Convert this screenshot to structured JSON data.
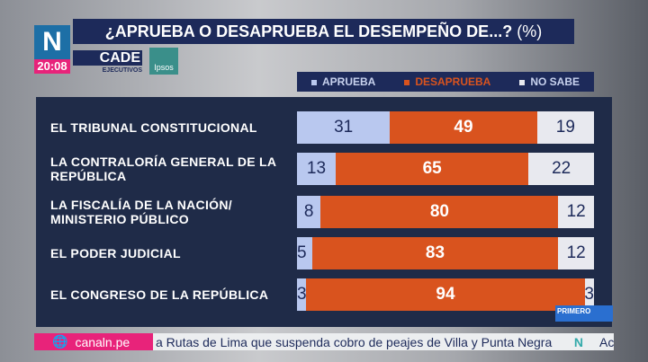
{
  "header": {
    "title": "¿APRUEBA O DESAPRUEBA EL DESEMPEÑO DE...?",
    "unit": "(%)",
    "time": "20:08",
    "cade": "CADE",
    "cade_sub": "EJECUTIVOS",
    "ipsos": "Ipsos",
    "logo": "N",
    "show_badge": "PRIMERO"
  },
  "colors": {
    "aprueba": "#b9c8ef",
    "desaprueba": "#d9531e",
    "no_sabe": "#e8e9ef"
  },
  "chart_data": {
    "type": "bar",
    "orientation": "horizontal",
    "stacked": true,
    "title": "¿APRUEBA O DESAPRUEBA EL DESEMPEÑO DE...? (%)",
    "legend_position": "top-right",
    "categories": [
      "EL TRIBUNAL CONSTITUCIONAL",
      "LA CONTRALORÍA GENERAL DE LA REPÚBLICA",
      "LA FISCALÍA DE LA NACIÓN/ MINISTERIO PÚBLICO",
      "EL PODER JUDICIAL",
      "EL CONGRESO DE LA REPÚBLICA"
    ],
    "series": [
      {
        "name": "APRUEBA",
        "values": [
          31,
          13,
          8,
          5,
          3
        ]
      },
      {
        "name": "DESAPRUEBA",
        "values": [
          49,
          65,
          80,
          83,
          94
        ]
      },
      {
        "name": "NO SABE",
        "values": [
          19,
          22,
          12,
          12,
          3
        ]
      }
    ]
  },
  "ticker": {
    "site": "canaln.pe",
    "text": "a Rutas de Lima que suspenda cobro de peajes de Villa y Punta Negra",
    "logo": "N",
    "next": "Ac"
  }
}
